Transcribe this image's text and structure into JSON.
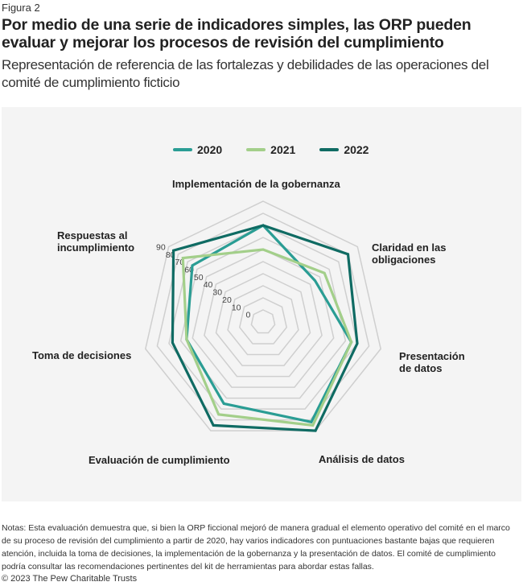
{
  "figure_label": "Figura 2",
  "title": "Por medio de una serie de indicadores simples, las ORP pueden evaluar y mejorar los procesos de revisión del cumplimiento",
  "subtitle": "Representación de referencia de las fortalezas y debilidades de las operaciones del comité de cumplimiento ficticio",
  "chart_data": {
    "type": "radar",
    "title": "",
    "categories": [
      "Implementación de la gobernanza",
      "Claridad en las obligaciones",
      "Presentación de datos",
      "Análisis de datos",
      "Evaluación de cumplimiento",
      "Toma de decisiones",
      "Respuestas al incumplimiento"
    ],
    "category_label_lines": [
      [
        "Implementación de la gobernanza"
      ],
      [
        "Claridad en las",
        "obligaciones"
      ],
      [
        "Presentación",
        "de datos"
      ],
      [
        "Análisis de datos"
      ],
      [
        "Evaluación de cumplimiento"
      ],
      [
        "Toma de decisiones"
      ],
      [
        "Respuestas al",
        "incumplimiento"
      ]
    ],
    "series": [
      {
        "name": "2020",
        "color": "#2a9d94",
        "values": [
          70,
          45,
          65,
          82,
          65,
          55,
          65
        ]
      },
      {
        "name": "2021",
        "color": "#a3cf8a",
        "values": [
          50,
          55,
          65,
          85,
          75,
          55,
          75
        ]
      },
      {
        "name": "2022",
        "color": "#0f6b63",
        "values": [
          70,
          80,
          70,
          90,
          85,
          67,
          85
        ]
      }
    ],
    "rlim": [
      0,
      90
    ],
    "ticks": [
      "0",
      "10",
      "20",
      "30",
      "40",
      "50",
      "60",
      "70",
      "80",
      "90"
    ],
    "grid": true,
    "legend": "top-center"
  },
  "notes": "Notas: Esta evaluación demuestra que, si bien la ORP ficcional mejoró de manera gradual el elemento operativo del comité en el marco de su proceso de revisión del cumplimiento a partir de 2020, hay varios indicadores con puntuaciones bastante bajas que requieren atención, incluida la toma de decisiones, la implementación de la gobernanza y la presentación de datos. El comité de cumplimiento podría consultar las recomendaciones pertinentes del kit de herramientas para abordar estas fallas.",
  "copyright": "© 2023 The Pew Charitable Trusts"
}
